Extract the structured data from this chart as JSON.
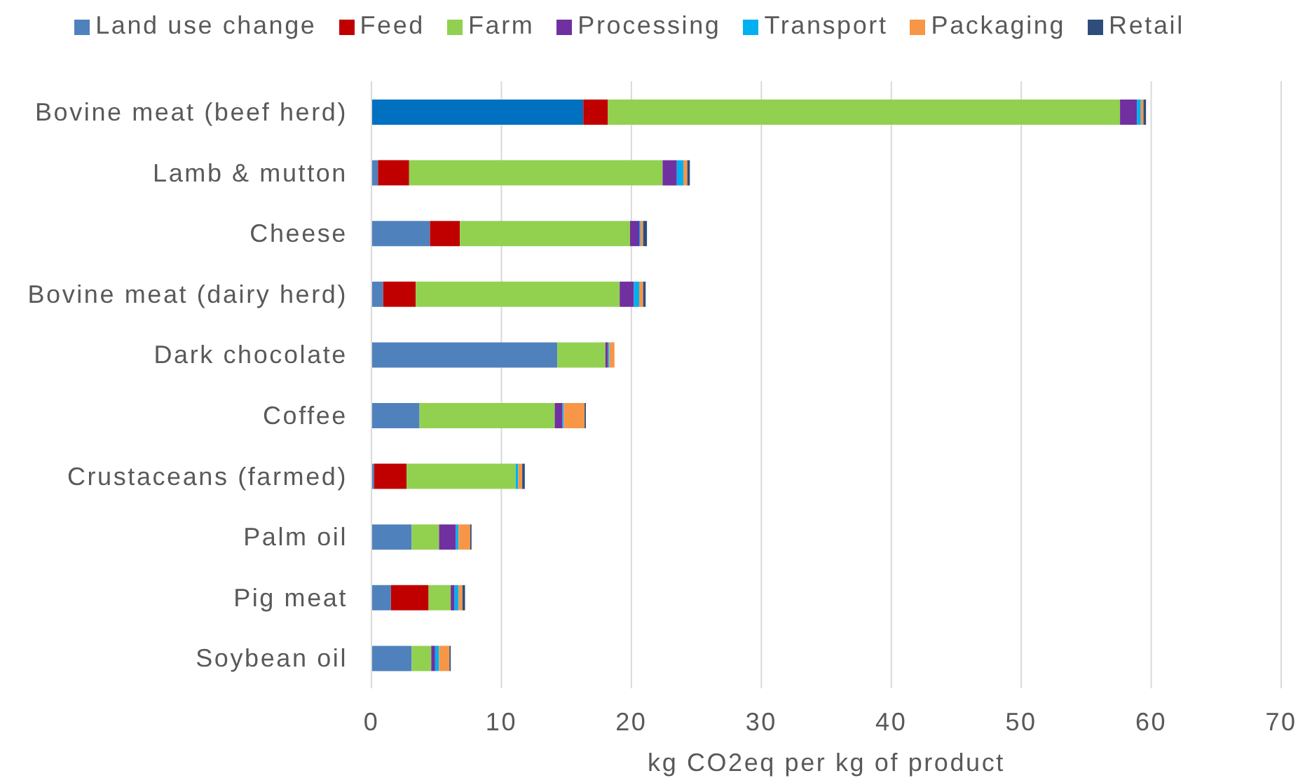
{
  "chart_data": {
    "type": "bar",
    "orientation": "horizontal",
    "stacked": true,
    "categories": [
      "Bovine meat (beef herd)",
      "Lamb & mutton",
      "Cheese",
      "Bovine meat (dairy herd)",
      "Dark chocolate",
      "Coffee",
      "Crustaceans (farmed)",
      "Palm oil",
      "Pig meat",
      "Soybean oil"
    ],
    "series": [
      {
        "name": "Land use change",
        "color": "#4f81bd",
        "colors": [
          "#0070c0",
          "#4f81bd",
          "#4f81bd",
          "#4f81bd",
          "#4f81bd",
          "#4f81bd",
          "#4f81bd",
          "#4f81bd",
          "#4f81bd",
          "#4f81bd"
        ],
        "values": [
          16.3,
          0.5,
          4.5,
          0.9,
          14.3,
          3.7,
          0.2,
          3.1,
          1.5,
          3.1
        ]
      },
      {
        "name": "Feed",
        "color": "#c00000",
        "values": [
          1.9,
          2.4,
          2.3,
          2.5,
          0,
          0,
          2.5,
          0,
          2.9,
          0
        ]
      },
      {
        "name": "Farm",
        "color": "#92d050",
        "values": [
          39.4,
          19.5,
          13.1,
          15.7,
          3.7,
          10.4,
          8.4,
          2.1,
          1.7,
          1.5
        ]
      },
      {
        "name": "Processing",
        "color": "#7030a0",
        "values": [
          1.3,
          1.1,
          0.7,
          1.1,
          0.2,
          0.6,
          0,
          1.3,
          0.3,
          0.3
        ]
      },
      {
        "name": "Transport",
        "color": "#00b0f0",
        "values": [
          0.3,
          0.5,
          0.1,
          0.4,
          0.1,
          0.1,
          0.2,
          0.2,
          0.3,
          0.3
        ]
      },
      {
        "name": "Packaging",
        "color": "#f79646",
        "values": [
          0.2,
          0.3,
          0.2,
          0.3,
          0.4,
          1.6,
          0.3,
          0.9,
          0.3,
          0.8
        ]
      },
      {
        "name": "Retail",
        "color": "#2e4d7b",
        "values": [
          0.2,
          0.2,
          0.3,
          0.2,
          0,
          0.1,
          0.2,
          0.1,
          0.2,
          0.1
        ]
      }
    ],
    "xlabel": "kg CO2eq per kg of product",
    "xlim": [
      0,
      70
    ],
    "xticks": [
      0,
      10,
      20,
      30,
      40,
      50,
      60,
      70
    ],
    "grid": "x",
    "legend": "top"
  }
}
